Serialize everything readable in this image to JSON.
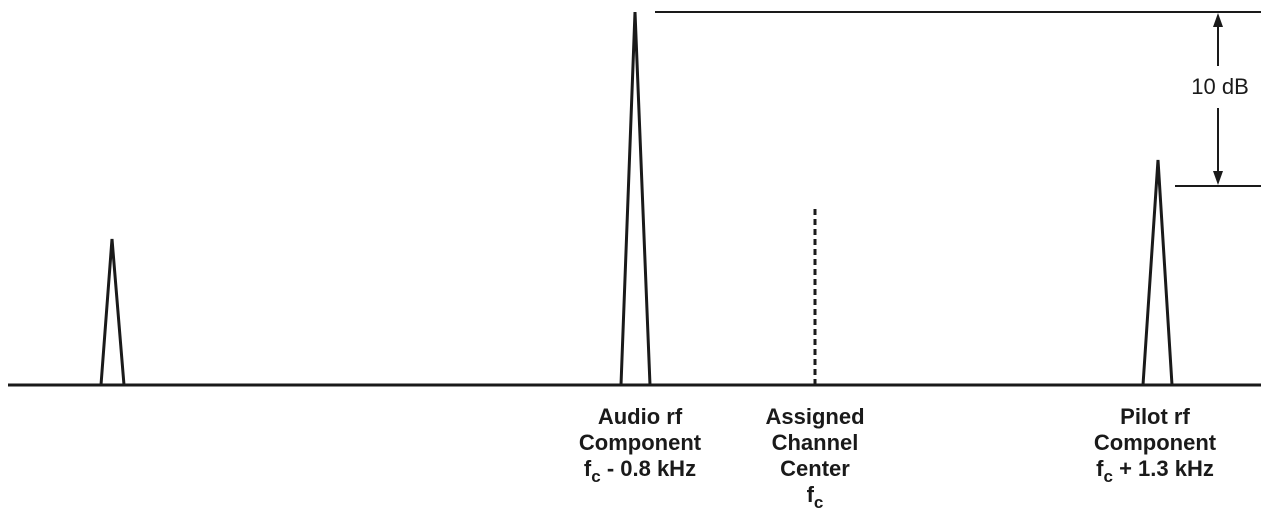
{
  "labels": {
    "audio": {
      "line1": "Audio rf",
      "line2": "Component",
      "freq_prefix": "f",
      "freq_sub": "c",
      "freq_suffix": " - 0.8 kHz"
    },
    "center": {
      "line1": "Assigned",
      "line2": "Channel",
      "line3": "Center",
      "freq_prefix": "f",
      "freq_sub": "c"
    },
    "pilot": {
      "line1": "Pilot rf",
      "line2": "Component",
      "freq_prefix": "f",
      "freq_sub": "c",
      "freq_suffix": " + 1.3 kHz"
    }
  },
  "reference": {
    "label": "10 dB"
  },
  "colors": {
    "stroke": "#1a1a1a",
    "background": "#ffffff"
  }
}
